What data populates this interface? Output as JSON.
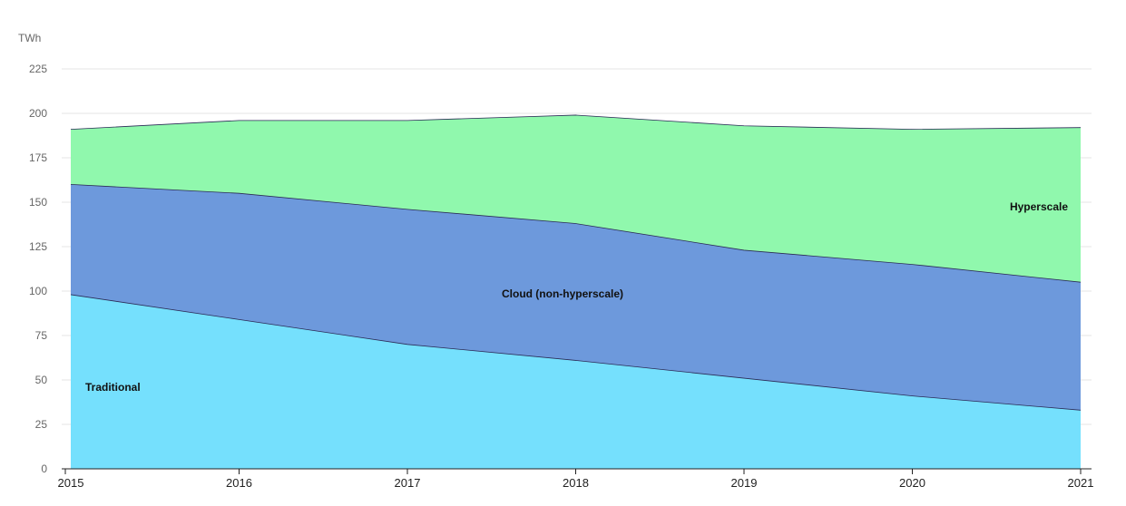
{
  "chart_data": {
    "type": "area",
    "stacked": true,
    "ylabel": "TWh",
    "x": [
      "2015",
      "2016",
      "2017",
      "2018",
      "2019",
      "2020",
      "2021"
    ],
    "ylim": [
      0,
      225
    ],
    "yticks": [
      0,
      25,
      50,
      75,
      100,
      125,
      150,
      175,
      200,
      225
    ],
    "grid": true,
    "legend": "inline labels",
    "series": [
      {
        "name": "Traditional",
        "color": "#75e0fd",
        "values": [
          98,
          84,
          70,
          61,
          51,
          41,
          33
        ]
      },
      {
        "name": "Cloud (non-hyperscale)",
        "color": "#6d99dc",
        "values": [
          62,
          71,
          76,
          77,
          72,
          74,
          72
        ]
      },
      {
        "name": "Hyperscale",
        "color": "#90f8ad",
        "values": [
          31,
          41,
          50,
          61,
          70,
          76,
          87
        ]
      }
    ]
  }
}
